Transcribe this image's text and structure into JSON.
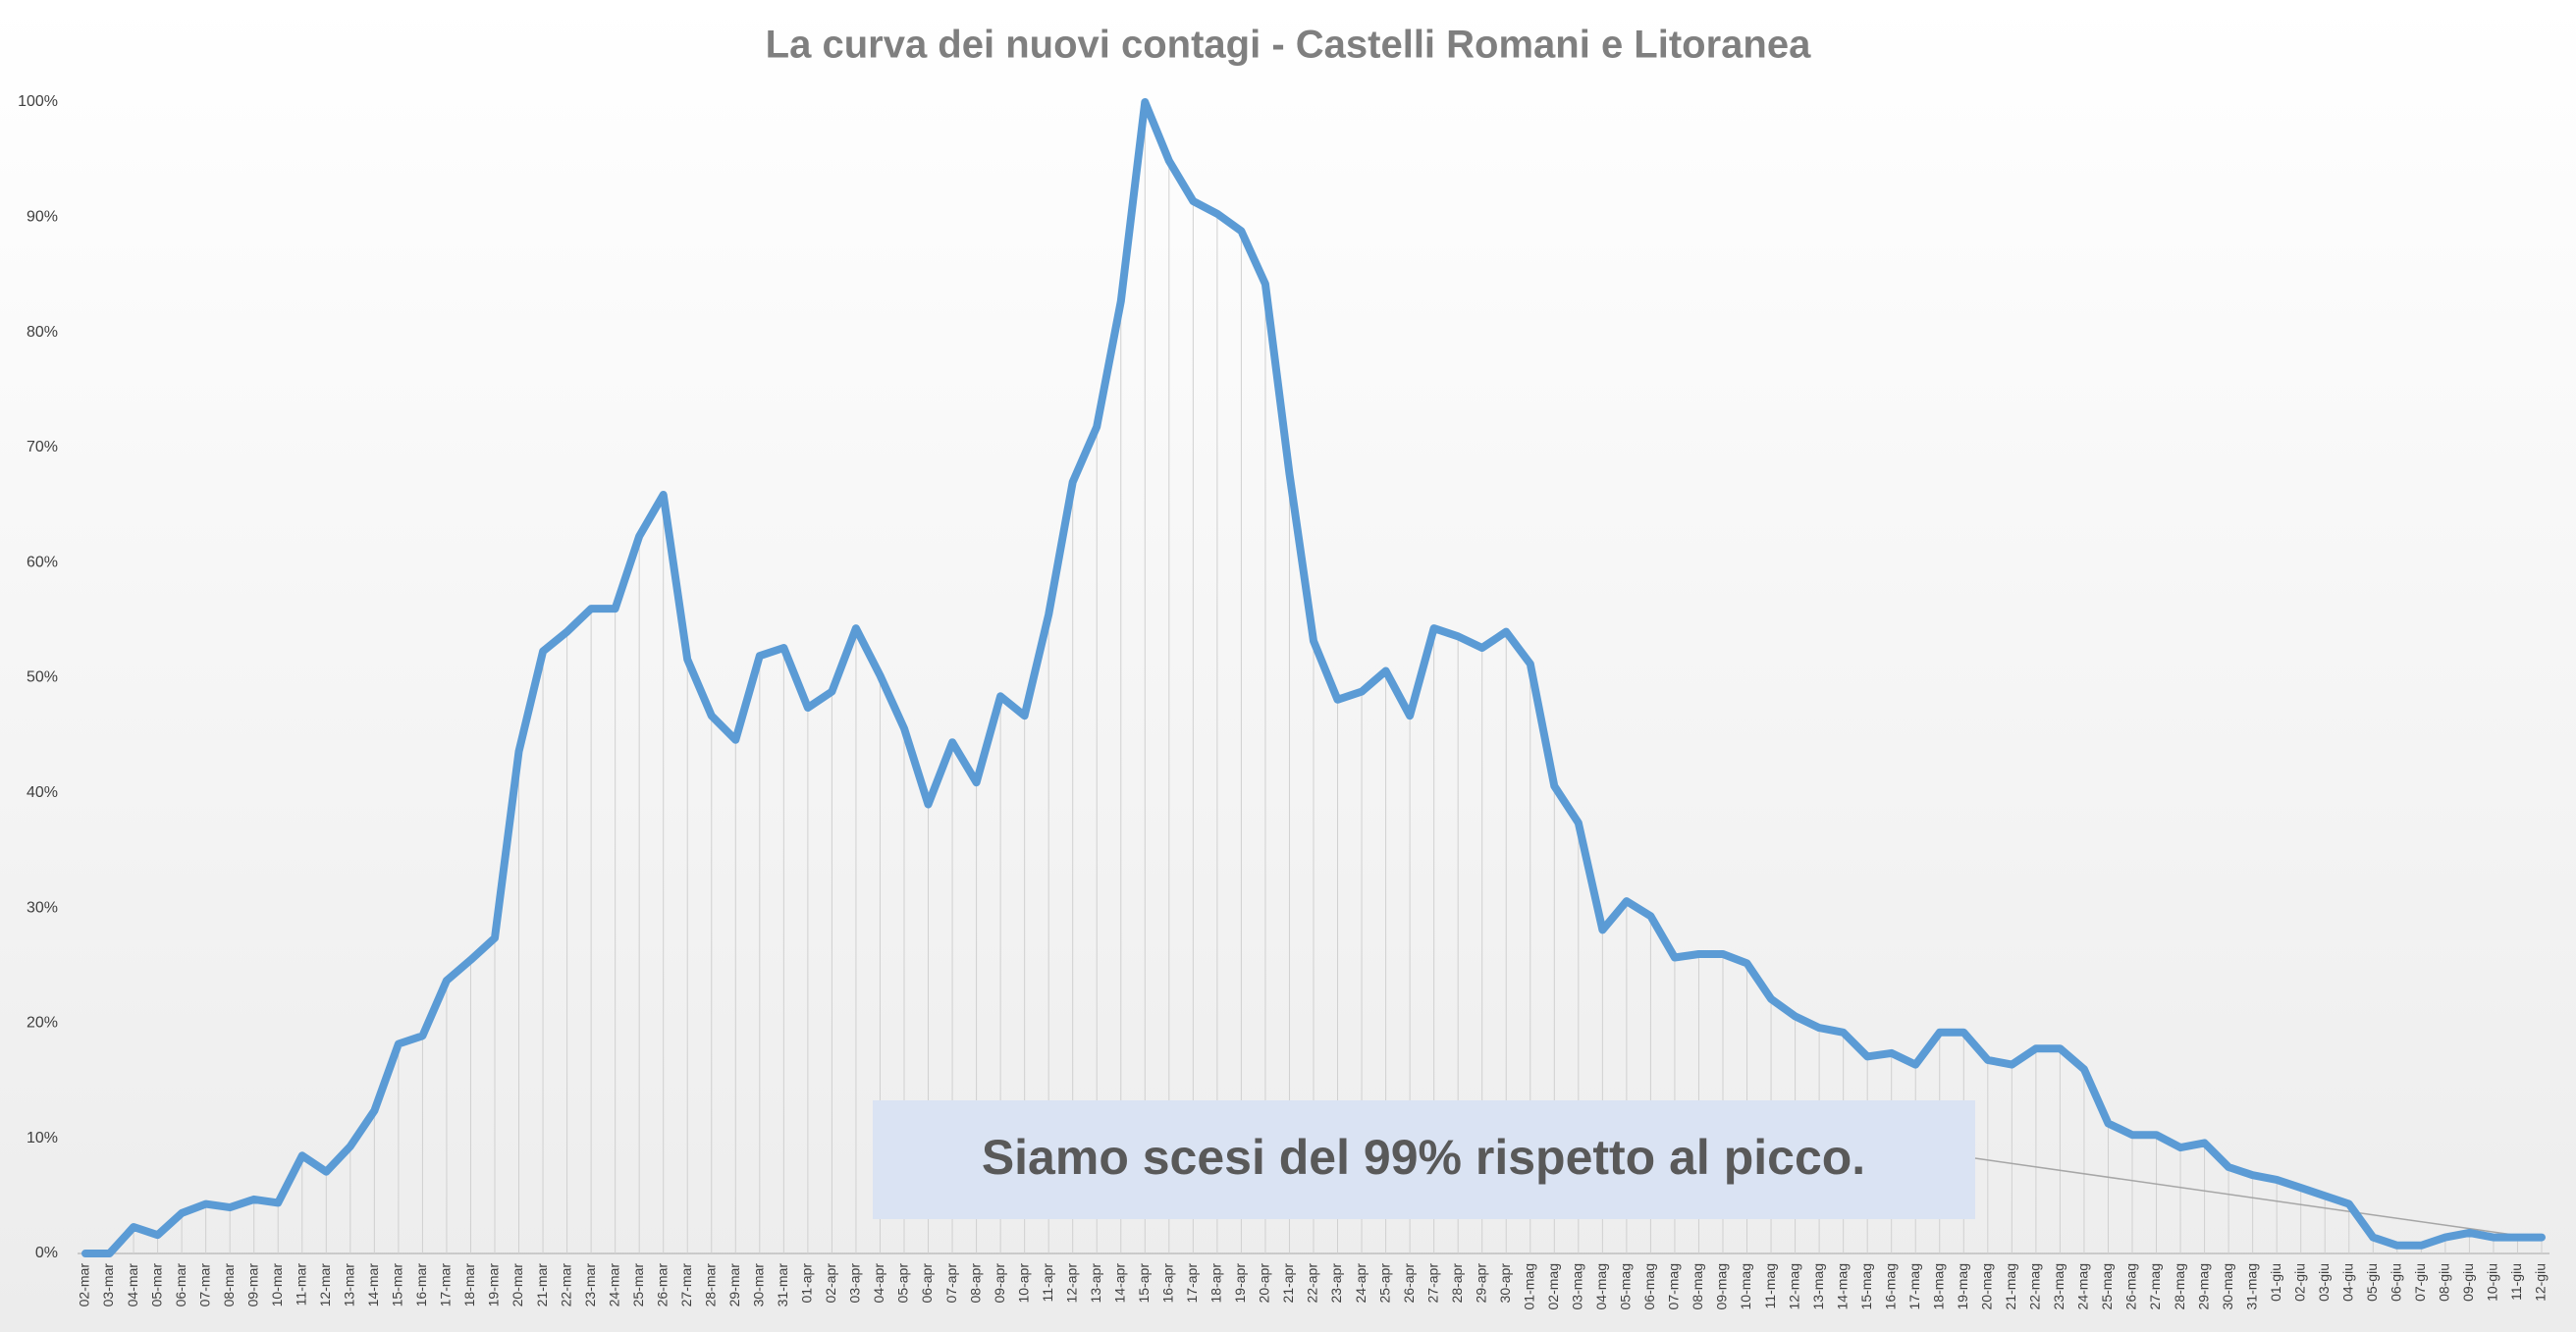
{
  "chart_data": {
    "type": "line",
    "title": "La curva dei nuovi contagi - Castelli Romani e Litoranea",
    "annotation": "Siamo scesi del 99% rispetto al picco.",
    "color": "#5b9bd5",
    "drop_lines": true,
    "categories": [
      "02-mar",
      "03-mar",
      "04-mar",
      "05-mar",
      "06-mar",
      "07-mar",
      "08-mar",
      "09-mar",
      "10-mar",
      "11-mar",
      "12-mar",
      "13-mar",
      "14-mar",
      "15-mar",
      "16-mar",
      "17-mar",
      "18-mar",
      "19-mar",
      "20-mar",
      "21-mar",
      "22-mar",
      "23-mar",
      "24-mar",
      "25-mar",
      "26-mar",
      "27-mar",
      "28-mar",
      "29-mar",
      "30-mar",
      "31-mar",
      "01-apr",
      "02-apr",
      "03-apr",
      "04-apr",
      "05-apr",
      "06-apr",
      "07-apr",
      "08-apr",
      "09-apr",
      "10-apr",
      "11-apr",
      "12-apr",
      "13-apr",
      "14-apr",
      "15-apr",
      "16-apr",
      "17-apr",
      "18-apr",
      "19-apr",
      "20-apr",
      "21-apr",
      "22-apr",
      "23-apr",
      "24-apr",
      "25-apr",
      "26-apr",
      "27-apr",
      "28-apr",
      "29-apr",
      "30-apr",
      "01-mag",
      "02-mag",
      "03-mag",
      "04-mag",
      "05-mag",
      "06-mag",
      "07-mag",
      "08-mag",
      "09-mag",
      "10-mag",
      "11-mag",
      "12-mag",
      "13-mag",
      "14-mag",
      "15-mag",
      "16-mag",
      "17-mag",
      "18-mag",
      "19-mag",
      "20-mag",
      "21-mag",
      "22-mag",
      "23-mag",
      "24-mag",
      "25-mag",
      "26-mag",
      "27-mag",
      "28-mag",
      "29-mag",
      "30-mag",
      "31-mag",
      "01-giu",
      "02-giu",
      "03-giu",
      "04-giu",
      "05-giu",
      "06-giu",
      "07-giu",
      "08-giu",
      "09-giu",
      "10-giu",
      "11-giu",
      "12-giu"
    ],
    "values": [
      0,
      0,
      2.3,
      1.6,
      3.5,
      4.3,
      4.0,
      4.7,
      4.4,
      8.5,
      7.1,
      9.3,
      12.4,
      18.2,
      18.9,
      23.7,
      25.5,
      27.4,
      43.6,
      52.3,
      54.0,
      56.0,
      56.0,
      62.3,
      65.9,
      51.6,
      46.7,
      44.6,
      51.9,
      52.6,
      47.4,
      48.8,
      54.3,
      50.2,
      45.6,
      39.0,
      44.4,
      40.9,
      48.4,
      46.7,
      55.5,
      67.0,
      71.8,
      82.7,
      100,
      94.9,
      91.4,
      90.3,
      88.8,
      84.2,
      67.7,
      53.2,
      48.1,
      48.8,
      50.6,
      46.7,
      54.3,
      53.6,
      52.6,
      54.0,
      51.2,
      40.6,
      37.4,
      28.1,
      30.6,
      29.3,
      25.7,
      26.0,
      26.0,
      25.2,
      22.1,
      20.6,
      19.6,
      19.2,
      17.1,
      17.4,
      16.4,
      19.2,
      19.2,
      16.8,
      16.4,
      17.8,
      17.8,
      16.0,
      11.3,
      10.3,
      10.3,
      9.2,
      9.6,
      7.5,
      6.8,
      6.4,
      5.7,
      5.0,
      4.3,
      1.4,
      0.7,
      0.7,
      1.4,
      1.8,
      1.4,
      1.4,
      1.4
    ],
    "ylim": [
      0,
      100
    ],
    "yticks": [
      {
        "value": 0,
        "label": "0%"
      },
      {
        "value": 10,
        "label": "10%"
      },
      {
        "value": 20,
        "label": "20%"
      },
      {
        "value": 30,
        "label": "30%"
      },
      {
        "value": 40,
        "label": "40%"
      },
      {
        "value": 50,
        "label": "50%"
      },
      {
        "value": 60,
        "label": "60%"
      },
      {
        "value": 70,
        "label": "70%"
      },
      {
        "value": 80,
        "label": "80%"
      },
      {
        "value": 90,
        "label": "90%"
      },
      {
        "value": 100,
        "label": "100%"
      }
    ]
  }
}
